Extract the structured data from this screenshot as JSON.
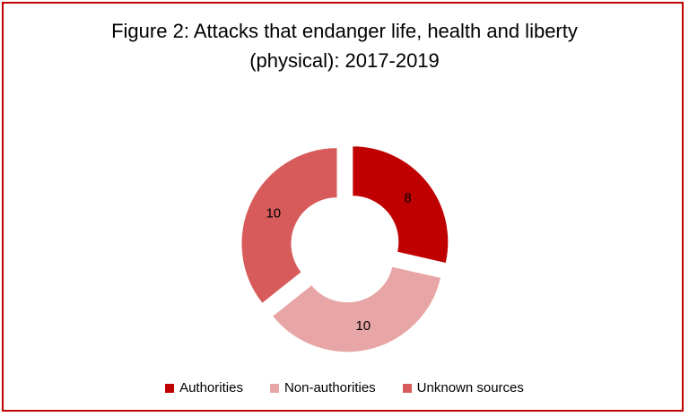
{
  "chart_data": {
    "type": "pie",
    "variant": "doughnut",
    "title_line1": "Figure 2: Attacks that endanger life, health and liberty",
    "title_line2": "(physical): 2017-2019",
    "categories": [
      "Authorities",
      "Non-authorities",
      "Unknown sources"
    ],
    "values": [
      8,
      10,
      10
    ],
    "colors": [
      "#c00000",
      "#e8a5a5",
      "#d85b5b"
    ],
    "exploded": true,
    "legend_position": "bottom"
  }
}
